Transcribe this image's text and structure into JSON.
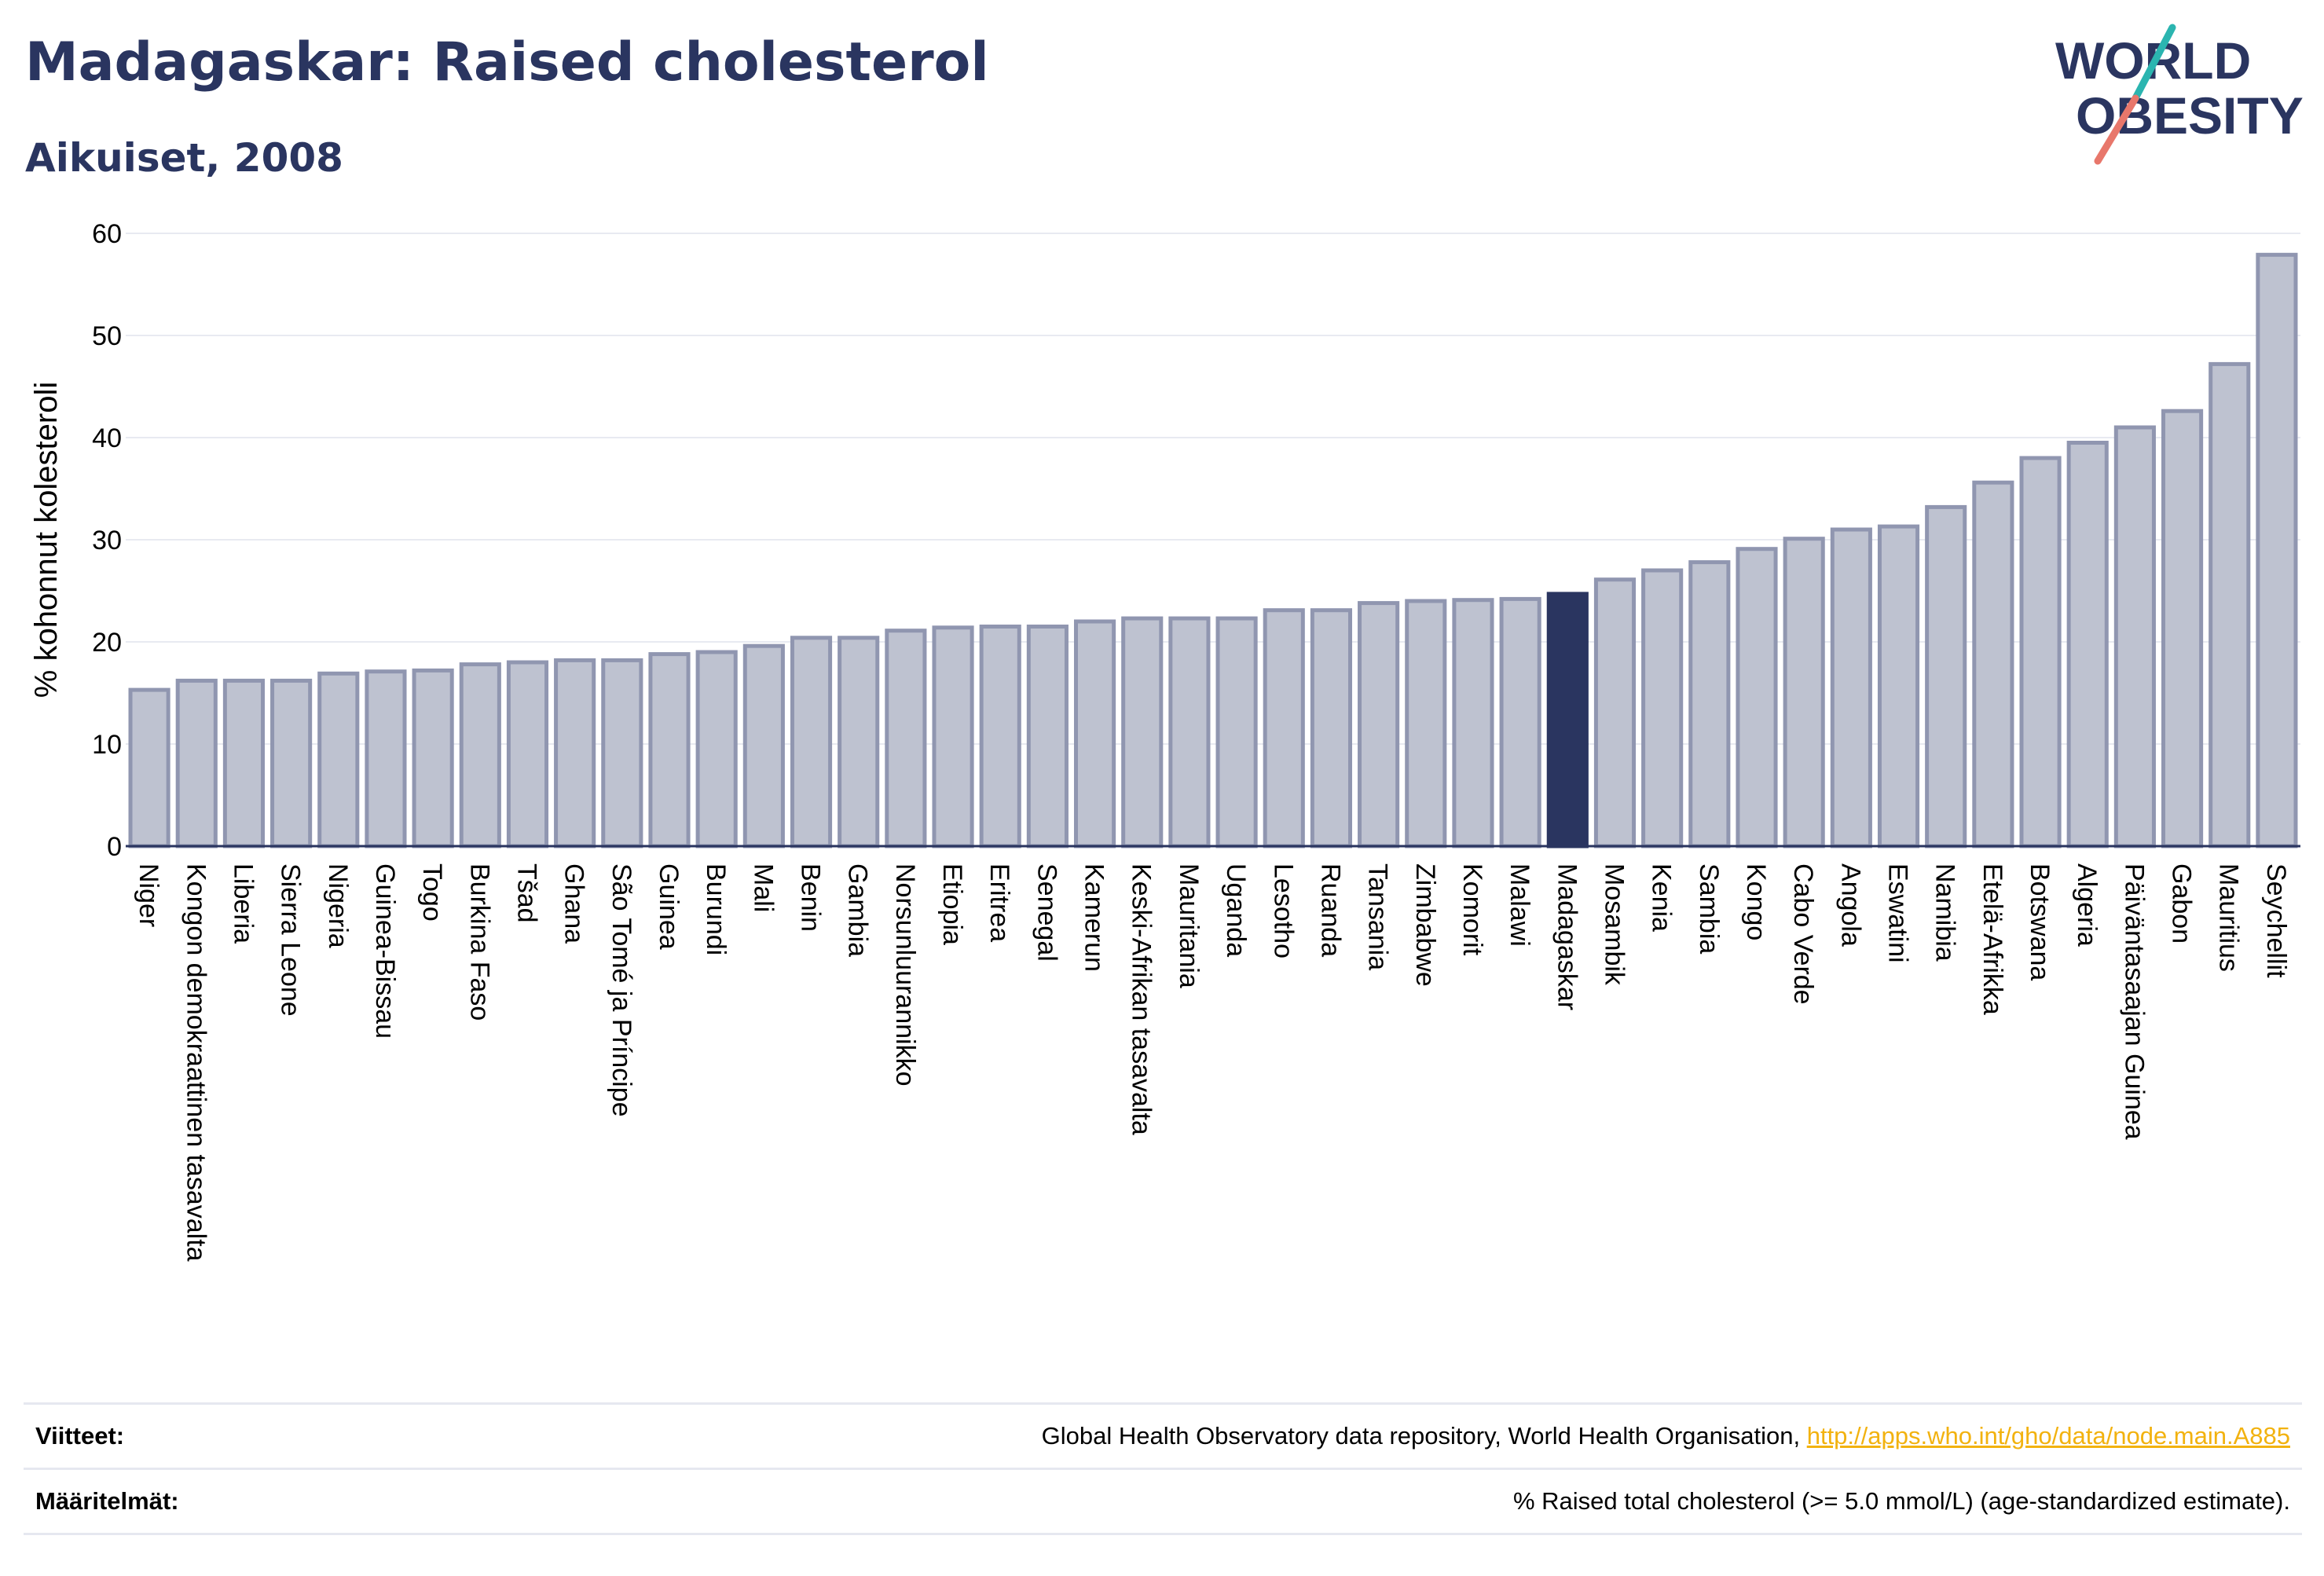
{
  "header": {
    "title": "Madagaskar: Raised cholesterol",
    "subtitle": "Aikuiset, 2008"
  },
  "logo": {
    "line1": "WORLD",
    "line2": "OBESITY"
  },
  "chart_data": {
    "type": "bar",
    "ylabel": "% kohonnut kolesteroli",
    "xlabel": "",
    "ylim": [
      0,
      60
    ],
    "yticks": [
      0,
      10,
      20,
      30,
      40,
      50,
      60
    ],
    "grid": true,
    "highlight": "Madagaskar",
    "colors": {
      "bar": "#bec2d0",
      "bar_edge": "#9096b0",
      "highlight": "#2a3560"
    },
    "categories": [
      "Niger",
      "Kongon demokraattinen tasavalta",
      "Liberia",
      "Sierra Leone",
      "Nigeria",
      "Guinea-Bissau",
      "Togo",
      "Burkina Faso",
      "Tšad",
      "Ghana",
      "São Tomé ja Príncipe",
      "Guinea",
      "Burundi",
      "Mali",
      "Benin",
      "Gambia",
      "Norsunluurannikko",
      "Etiopia",
      "Eritrea",
      "Senegal",
      "Kamerun",
      "Keski-Afrikan tasavalta",
      "Mauritania",
      "Uganda",
      "Lesotho",
      "Ruanda",
      "Tansania",
      "Zimbabwe",
      "Komorit",
      "Malawi",
      "Madagaskar",
      "Mosambik",
      "Kenia",
      "Sambia",
      "Kongo",
      "Cabo Verde",
      "Angola",
      "Eswatini",
      "Namibia",
      "Etelä-Afrikka",
      "Botswana",
      "Algeria",
      "Päiväntasaajan Guinea",
      "Gabon",
      "Mauritius",
      "Seychellit"
    ],
    "values": [
      15.3,
      16.2,
      16.2,
      16.2,
      16.9,
      17.1,
      17.2,
      17.8,
      18.0,
      18.2,
      18.2,
      18.8,
      19.0,
      19.6,
      20.4,
      20.4,
      21.1,
      21.4,
      21.5,
      21.5,
      22.0,
      22.3,
      22.3,
      22.3,
      23.1,
      23.1,
      23.8,
      24.0,
      24.1,
      24.2,
      24.7,
      26.1,
      27.0,
      27.8,
      29.1,
      30.1,
      31.0,
      31.3,
      33.2,
      35.6,
      38.0,
      39.5,
      41.0,
      42.6,
      47.2,
      57.9
    ]
  },
  "footer": {
    "sources_label": "Viitteet:",
    "sources_text": "Global Health Observatory data repository, World Health Organisation, ",
    "sources_link": "http://apps.who.int/gho/data/node.main.A885",
    "definitions_label": "Määritelmät:",
    "definitions_text": "% Raised total cholesterol (>= 5.0 mmol/L) (age-standardized estimate)."
  }
}
